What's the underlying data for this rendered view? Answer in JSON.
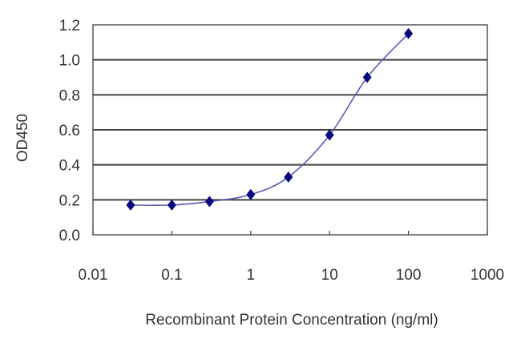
{
  "chart_data": {
    "type": "line",
    "title": "",
    "xlabel": "Recombinant Protein Concentration (ng/ml)",
    "ylabel": "OD450",
    "x_scale": "log",
    "xlim": [
      0.01,
      1000
    ],
    "ylim": [
      0.0,
      1.2
    ],
    "x_ticks": [
      0.01,
      0.1,
      1,
      10,
      100,
      1000
    ],
    "x_tick_labels": [
      "0.01",
      "0.1",
      "1",
      "10",
      "100",
      "1000"
    ],
    "y_ticks": [
      0.0,
      0.2,
      0.4,
      0.6,
      0.8,
      1.0,
      1.2
    ],
    "y_tick_labels": [
      "0.0",
      "0.2",
      "0.4",
      "0.6",
      "0.8",
      "1.0",
      "1.2"
    ],
    "grid": "horizontal",
    "legend": "none",
    "series": [
      {
        "name": "OD450",
        "marker": "diamond",
        "line_color": "#5a5ab4",
        "marker_color": "#0a0a80",
        "x": [
          0.03,
          0.1,
          0.3,
          1,
          3,
          10,
          30,
          100
        ],
        "values": [
          0.17,
          0.17,
          0.19,
          0.23,
          0.33,
          0.57,
          0.9,
          1.15
        ]
      }
    ]
  },
  "colors": {
    "gridline": "#444444",
    "axis": "#444444",
    "text": "#333333"
  }
}
